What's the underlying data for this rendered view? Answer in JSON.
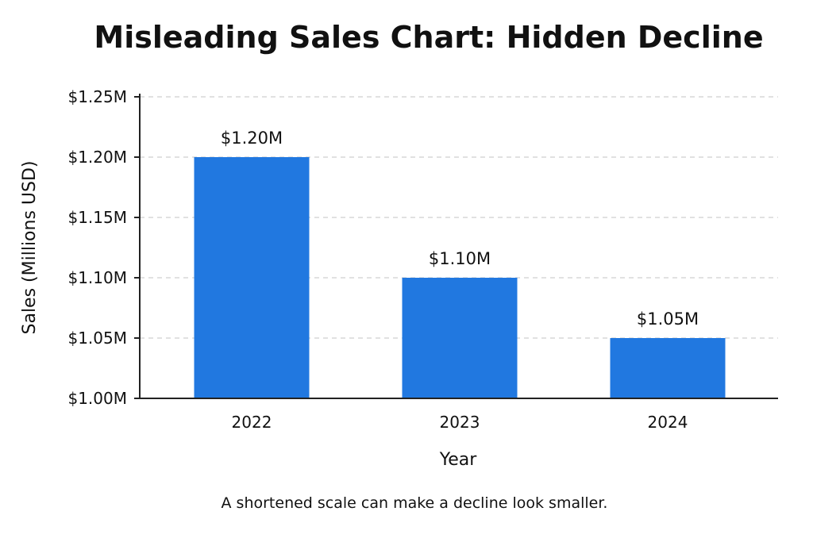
{
  "chart_data": {
    "type": "bar",
    "title": "Misleading Sales Chart: Hidden Decline",
    "caption": "A shortened scale can make a decline look smaller.",
    "xlabel": "Year",
    "ylabel": "Sales (Millions USD)",
    "categories": [
      "2022",
      "2023",
      "2024"
    ],
    "values": [
      1.2,
      1.1,
      1.05
    ],
    "value_labels": [
      "$1.20M",
      "$1.10M",
      "$1.05M"
    ],
    "ylim": [
      1.0,
      1.25
    ],
    "yticks": [
      1.0,
      1.05,
      1.1,
      1.15,
      1.2,
      1.25
    ],
    "ytick_labels": [
      "$1.00M",
      "$1.05M",
      "$1.10M",
      "$1.15M",
      "$1.20M",
      "$1.25M"
    ],
    "grid": true,
    "grid_style": "dashed-horizontal",
    "bar_color": "#2178E0",
    "axis_color": "#222222",
    "grid_color": "#cfcfcf"
  }
}
